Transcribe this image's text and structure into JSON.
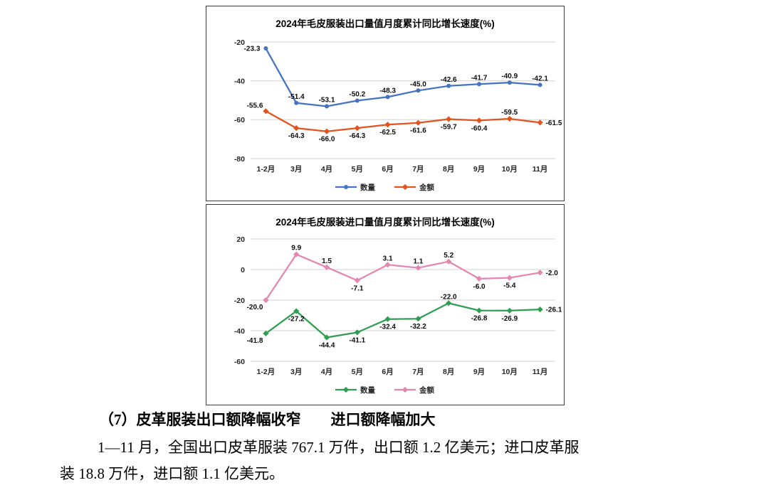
{
  "page": {
    "heading": "（7）皮革服装出口额降幅收窄　　进口额降幅加大",
    "paragraph": {
      "line1": "1—11 月，全国出口皮革服装 767.1 万件，出口额 1.2 亿美元；进口皮革服",
      "line2": "装 18.8 万件，进口额 1.1 亿美元。"
    }
  },
  "chart_data": [
    {
      "type": "line",
      "title": "2024年毛皮服装出口量值月度累计同比增长速度(%)",
      "categories": [
        "1-2月",
        "3月",
        "4月",
        "5月",
        "6月",
        "7月",
        "8月",
        "9月",
        "10月",
        "11月"
      ],
      "series": [
        {
          "name": "数量",
          "color": "#4472C4",
          "marker": "circle",
          "values": [
            -23.3,
            -51.4,
            -53.1,
            -50.2,
            -48.3,
            -45.0,
            -42.6,
            -41.7,
            -40.9,
            -42.1
          ]
        },
        {
          "name": "金额",
          "color": "#E2531D",
          "marker": "diamond",
          "values": [
            -55.6,
            -64.3,
            -66.0,
            -64.3,
            -62.5,
            -61.6,
            -59.7,
            -60.4,
            -59.5,
            -61.5
          ]
        }
      ],
      "ylim": [
        -80,
        -20
      ],
      "yticks": [
        -20,
        -40,
        -60,
        -80
      ],
      "grid": true,
      "legend_position": "bottom"
    },
    {
      "type": "line",
      "title": "2024年毛皮服装进口量值月度累计同比增长速度(%)",
      "categories": [
        "1-2月",
        "3月",
        "4月",
        "5月",
        "6月",
        "7月",
        "8月",
        "9月",
        "10月",
        "11月"
      ],
      "series": [
        {
          "name": "数量",
          "color": "#2F9E51",
          "marker": "diamond",
          "values": [
            -41.8,
            -27.2,
            -44.4,
            -41.1,
            -32.4,
            -32.2,
            -22.0,
            -26.8,
            -26.9,
            -26.1
          ]
        },
        {
          "name": "金额",
          "color": "#E487AE",
          "marker": "diamond",
          "values": [
            -20.0,
            9.9,
            1.5,
            -7.1,
            3.1,
            1.1,
            5.2,
            -6.0,
            -5.4,
            -2.0
          ]
        }
      ],
      "ylim": [
        -60,
        20
      ],
      "yticks": [
        20,
        0,
        -20,
        -40,
        -60
      ],
      "grid": true,
      "legend_position": "bottom"
    }
  ]
}
